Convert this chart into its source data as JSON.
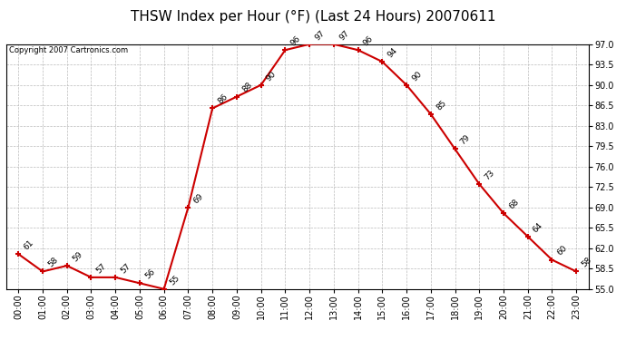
{
  "title": "THSW Index per Hour (°F) (Last 24 Hours) 20070611",
  "copyright_text": "Copyright 2007 Cartronics.com",
  "hours": [
    "00:00",
    "01:00",
    "02:00",
    "03:00",
    "04:00",
    "05:00",
    "06:00",
    "07:00",
    "08:00",
    "09:00",
    "10:00",
    "11:00",
    "12:00",
    "13:00",
    "14:00",
    "15:00",
    "16:00",
    "17:00",
    "18:00",
    "19:00",
    "20:00",
    "21:00",
    "22:00",
    "23:00"
  ],
  "values": [
    61,
    58,
    59,
    57,
    57,
    56,
    55,
    69,
    86,
    88,
    90,
    96,
    97,
    97,
    96,
    94,
    90,
    85,
    79,
    73,
    68,
    64,
    60,
    58
  ],
  "ylim": [
    55.0,
    97.0
  ],
  "yticks": [
    55.0,
    58.5,
    62.0,
    65.5,
    69.0,
    72.5,
    76.0,
    79.5,
    83.0,
    86.5,
    90.0,
    93.5,
    97.0
  ],
  "line_color": "#cc0000",
  "marker_color": "#cc0000",
  "bg_color": "#ffffff",
  "grid_color": "#bbbbbb",
  "title_fontsize": 11,
  "tick_fontsize": 7,
  "annotation_fontsize": 6.5
}
